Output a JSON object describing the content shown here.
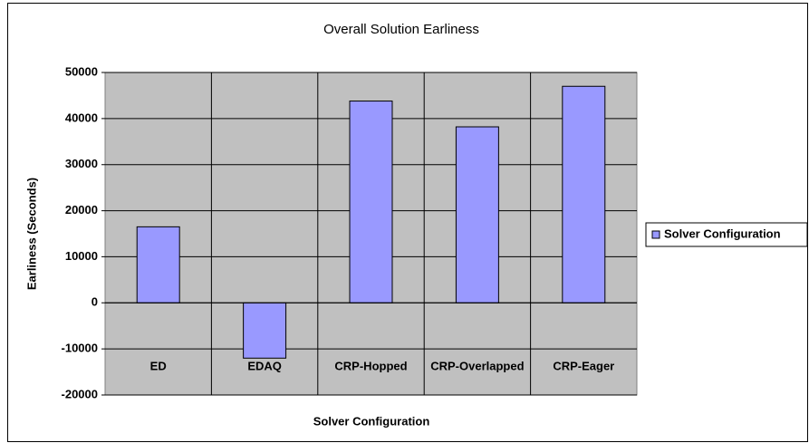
{
  "chart_data": {
    "type": "bar",
    "title": "Overall Solution Earliness",
    "x_label": "Solver Configuration",
    "y_label": "Earliness (Seconds)",
    "categories": [
      "ED",
      "EDAQ",
      "CRP-Hopped",
      "CRP-Overlapped",
      "CRP-Eager"
    ],
    "series": [
      {
        "name": "Solver Configuration",
        "color": "#9999ff",
        "values": [
          16500,
          -12000,
          43800,
          38200,
          47000
        ]
      }
    ],
    "ylim": [
      -20000,
      50000
    ],
    "yticks": [
      -20000,
      -10000,
      0,
      10000,
      20000,
      30000,
      40000,
      50000
    ],
    "grid": true,
    "legend": "right"
  }
}
